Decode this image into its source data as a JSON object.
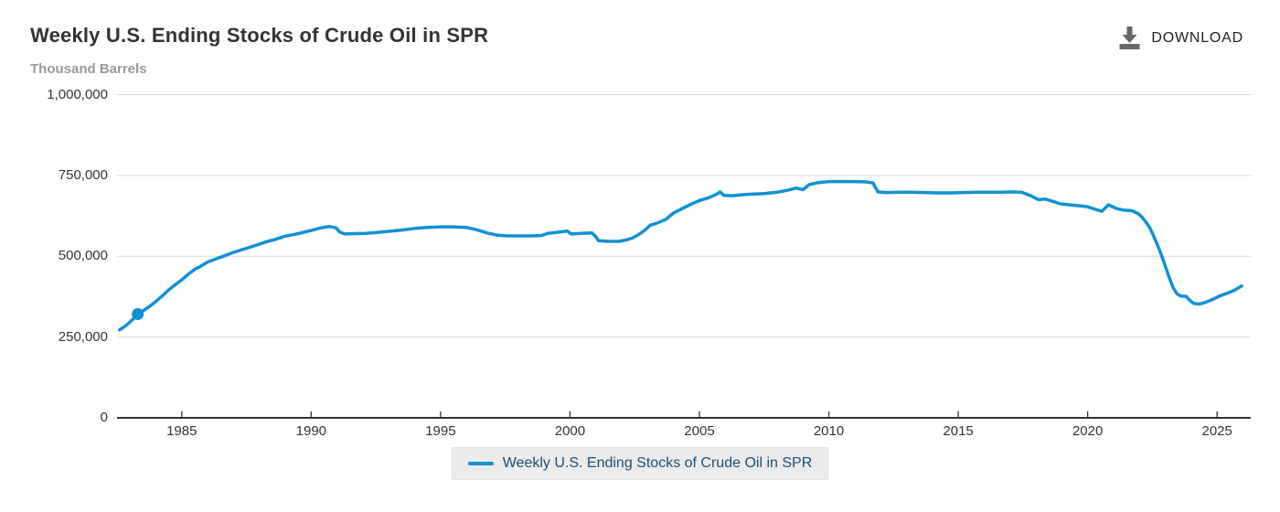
{
  "header": {
    "title": "Weekly U.S. Ending Stocks of Crude Oil in SPR",
    "units_label": "Thousand Barrels",
    "download_label": "DOWNLOAD"
  },
  "legend": {
    "label": "Weekly U.S. Ending Stocks of Crude Oil in SPR"
  },
  "icons": {
    "download_icon": "download-arrow-into-tray"
  },
  "colors": {
    "line": "#1191d4",
    "grid": "#d8d8d8",
    "axis": "#333333",
    "title_text": "#333333",
    "subtitle_text": "#999999",
    "tick_text": "#333333",
    "legend_bg": "#ebebeb",
    "legend_text": "#1a4e74",
    "download_icon": "#666666",
    "download_text": "#222222"
  },
  "chart_data": {
    "type": "line",
    "title": "Weekly U.S. Ending Stocks of Crude Oil in SPR",
    "ylabel": "Thousand Barrels",
    "xlabel": "",
    "grid": true,
    "legend_position": "bottom-center",
    "xlim": [
      1982.5,
      2026.3
    ],
    "ylim": [
      0,
      1000000
    ],
    "x_ticks": [
      1985,
      1990,
      1995,
      2000,
      2005,
      2010,
      2015,
      2020,
      2025
    ],
    "y_ticks": [
      {
        "value": 0,
        "label": "0"
      },
      {
        "value": 250000,
        "label": "250,000"
      },
      {
        "value": 500000,
        "label": "500,000"
      },
      {
        "value": 750000,
        "label": "750,000"
      },
      {
        "value": 1000000,
        "label": "1,000,000"
      }
    ],
    "marker_point": {
      "x": 1983.3,
      "y": 321000
    },
    "series": [
      {
        "name": "Weekly U.S. Ending Stocks of Crude Oil in SPR",
        "points": [
          [
            1982.6,
            272000
          ],
          [
            1982.75,
            280000
          ],
          [
            1982.9,
            289000
          ],
          [
            1983.1,
            304000
          ],
          [
            1983.3,
            321000
          ],
          [
            1983.5,
            331000
          ],
          [
            1983.75,
            344000
          ],
          [
            1984.0,
            360000
          ],
          [
            1984.25,
            377000
          ],
          [
            1984.5,
            396000
          ],
          [
            1984.75,
            412000
          ],
          [
            1985.0,
            427000
          ],
          [
            1985.25,
            444000
          ],
          [
            1985.5,
            459000
          ],
          [
            1985.75,
            470000
          ],
          [
            1986.0,
            482000
          ],
          [
            1986.3,
            491000
          ],
          [
            1986.6,
            500000
          ],
          [
            1987.0,
            512000
          ],
          [
            1987.4,
            522000
          ],
          [
            1987.8,
            532000
          ],
          [
            1988.2,
            543000
          ],
          [
            1988.6,
            552000
          ],
          [
            1989.0,
            562000
          ],
          [
            1989.4,
            568000
          ],
          [
            1989.8,
            576000
          ],
          [
            1990.1,
            582000
          ],
          [
            1990.4,
            588000
          ],
          [
            1990.7,
            592000
          ],
          [
            1990.95,
            588000
          ],
          [
            1991.1,
            575000
          ],
          [
            1991.3,
            569000
          ],
          [
            1991.7,
            570000
          ],
          [
            1992.1,
            571000
          ],
          [
            1992.5,
            573000
          ],
          [
            1993.0,
            577000
          ],
          [
            1993.5,
            581000
          ],
          [
            1994.0,
            586000
          ],
          [
            1994.5,
            589000
          ],
          [
            1995.0,
            591000
          ],
          [
            1995.5,
            591000
          ],
          [
            1996.0,
            589000
          ],
          [
            1996.4,
            582000
          ],
          [
            1996.8,
            572000
          ],
          [
            1997.2,
            565000
          ],
          [
            1997.6,
            563000
          ],
          [
            1998.0,
            563000
          ],
          [
            1998.5,
            563000
          ],
          [
            1998.9,
            564000
          ],
          [
            1999.15,
            571000
          ],
          [
            1999.5,
            574000
          ],
          [
            1999.9,
            578000
          ],
          [
            2000.05,
            569000
          ],
          [
            2000.45,
            571000
          ],
          [
            2000.85,
            572000
          ],
          [
            2001.0,
            560000
          ],
          [
            2001.1,
            548000
          ],
          [
            2001.5,
            546000
          ],
          [
            2001.9,
            546000
          ],
          [
            2002.1,
            549000
          ],
          [
            2002.4,
            556000
          ],
          [
            2002.65,
            567000
          ],
          [
            2002.9,
            581000
          ],
          [
            2003.1,
            596000
          ],
          [
            2003.35,
            602000
          ],
          [
            2003.7,
            614000
          ],
          [
            2004.0,
            634000
          ],
          [
            2004.35,
            648000
          ],
          [
            2004.7,
            662000
          ],
          [
            2005.0,
            672000
          ],
          [
            2005.35,
            681000
          ],
          [
            2005.65,
            691000
          ],
          [
            2005.8,
            699000
          ],
          [
            2005.95,
            688000
          ],
          [
            2006.25,
            687000
          ],
          [
            2006.6,
            690000
          ],
          [
            2007.0,
            692000
          ],
          [
            2007.5,
            694000
          ],
          [
            2008.0,
            698000
          ],
          [
            2008.4,
            704000
          ],
          [
            2008.75,
            711000
          ],
          [
            2009.0,
            706000
          ],
          [
            2009.25,
            722000
          ],
          [
            2009.6,
            728000
          ],
          [
            2010.0,
            731000
          ],
          [
            2010.5,
            731000
          ],
          [
            2011.0,
            731000
          ],
          [
            2011.4,
            730000
          ],
          [
            2011.7,
            727000
          ],
          [
            2011.8,
            713000
          ],
          [
            2011.9,
            699000
          ],
          [
            2012.2,
            697000
          ],
          [
            2012.7,
            698000
          ],
          [
            2013.2,
            698000
          ],
          [
            2013.7,
            697000
          ],
          [
            2014.2,
            696000
          ],
          [
            2014.7,
            696000
          ],
          [
            2015.2,
            697000
          ],
          [
            2015.7,
            698000
          ],
          [
            2016.2,
            698000
          ],
          [
            2016.7,
            698000
          ],
          [
            2017.05,
            699000
          ],
          [
            2017.45,
            698000
          ],
          [
            2017.8,
            687000
          ],
          [
            2018.1,
            675000
          ],
          [
            2018.35,
            677000
          ],
          [
            2018.65,
            670000
          ],
          [
            2018.95,
            662000
          ],
          [
            2019.3,
            659000
          ],
          [
            2019.7,
            656000
          ],
          [
            2020.0,
            653000
          ],
          [
            2020.3,
            645000
          ],
          [
            2020.55,
            639000
          ],
          [
            2020.8,
            659000
          ],
          [
            2021.1,
            648000
          ],
          [
            2021.35,
            643000
          ],
          [
            2021.7,
            641000
          ],
          [
            2021.95,
            632000
          ],
          [
            2022.1,
            621000
          ],
          [
            2022.25,
            606000
          ],
          [
            2022.4,
            588000
          ],
          [
            2022.55,
            562000
          ],
          [
            2022.7,
            534000
          ],
          [
            2022.85,
            504000
          ],
          [
            2023.0,
            469000
          ],
          [
            2023.15,
            434000
          ],
          [
            2023.3,
            403000
          ],
          [
            2023.45,
            384000
          ],
          [
            2023.6,
            377000
          ],
          [
            2023.8,
            376000
          ],
          [
            2023.95,
            363000
          ],
          [
            2024.1,
            354000
          ],
          [
            2024.3,
            352000
          ],
          [
            2024.5,
            356000
          ],
          [
            2024.7,
            362000
          ],
          [
            2024.9,
            369000
          ],
          [
            2025.1,
            377000
          ],
          [
            2025.3,
            383000
          ],
          [
            2025.5,
            389000
          ],
          [
            2025.7,
            396000
          ],
          [
            2025.95,
            408000
          ]
        ]
      }
    ]
  }
}
